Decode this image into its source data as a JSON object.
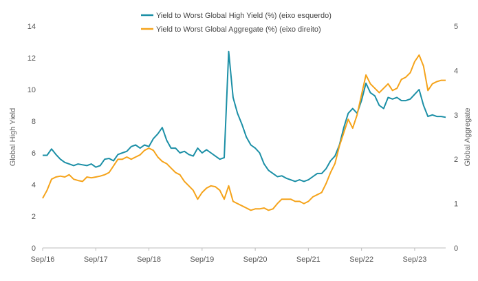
{
  "chart_data": {
    "type": "line",
    "xlabel": "",
    "x_ticks": [
      "Sep/16",
      "Sep/17",
      "Sep/18",
      "Sep/19",
      "Sep/20",
      "Sep/21",
      "Sep/22",
      "Sep/23"
    ],
    "xlim": [
      "2016-09",
      "2024-04"
    ],
    "left_axis": {
      "label": "Global High Yield",
      "lim": [
        0,
        14
      ],
      "ticks": [
        "0",
        "2",
        "4",
        "6",
        "8",
        "10",
        "12",
        "14"
      ]
    },
    "right_axis": {
      "label": "Global Aggregate",
      "lim": [
        0,
        5
      ],
      "ticks": [
        "0",
        "1",
        "2",
        "3",
        "4",
        "5"
      ]
    },
    "grid": false,
    "legend_position": "top-center",
    "series": [
      {
        "name": "Yield to Worst Global High Yield (%) (eixo esquerdo)",
        "axis": "left",
        "color": "#1b8fa6",
        "points": [
          [
            "2016-09",
            5.85
          ],
          [
            "2016-10",
            5.85
          ],
          [
            "2016-11",
            6.25
          ],
          [
            "2016-12",
            5.9
          ],
          [
            "2017-01",
            5.6
          ],
          [
            "2017-02",
            5.4
          ],
          [
            "2017-03",
            5.3
          ],
          [
            "2017-04",
            5.2
          ],
          [
            "2017-05",
            5.3
          ],
          [
            "2017-06",
            5.25
          ],
          [
            "2017-07",
            5.2
          ],
          [
            "2017-08",
            5.3
          ],
          [
            "2017-09",
            5.1
          ],
          [
            "2017-10",
            5.2
          ],
          [
            "2017-11",
            5.6
          ],
          [
            "2017-12",
            5.65
          ],
          [
            "2018-01",
            5.5
          ],
          [
            "2018-02",
            5.9
          ],
          [
            "2018-03",
            6.0
          ],
          [
            "2018-04",
            6.1
          ],
          [
            "2018-05",
            6.4
          ],
          [
            "2018-06",
            6.5
          ],
          [
            "2018-07",
            6.3
          ],
          [
            "2018-08",
            6.5
          ],
          [
            "2018-09",
            6.4
          ],
          [
            "2018-10",
            6.9
          ],
          [
            "2018-11",
            7.2
          ],
          [
            "2018-12",
            7.6
          ],
          [
            "2019-01",
            6.8
          ],
          [
            "2019-02",
            6.3
          ],
          [
            "2019-03",
            6.3
          ],
          [
            "2019-04",
            6.0
          ],
          [
            "2019-05",
            6.1
          ],
          [
            "2019-06",
            5.9
          ],
          [
            "2019-07",
            5.8
          ],
          [
            "2019-08",
            6.3
          ],
          [
            "2019-09",
            6.0
          ],
          [
            "2019-10",
            6.2
          ],
          [
            "2019-11",
            6.0
          ],
          [
            "2019-12",
            5.8
          ],
          [
            "2020-01",
            5.6
          ],
          [
            "2020-02",
            5.7
          ],
          [
            "2020-03",
            12.4
          ],
          [
            "2020-04",
            9.5
          ],
          [
            "2020-05",
            8.5
          ],
          [
            "2020-06",
            7.8
          ],
          [
            "2020-07",
            7.0
          ],
          [
            "2020-08",
            6.5
          ],
          [
            "2020-09",
            6.3
          ],
          [
            "2020-10",
            6.0
          ],
          [
            "2020-11",
            5.3
          ],
          [
            "2020-12",
            4.9
          ],
          [
            "2021-01",
            4.7
          ],
          [
            "2021-02",
            4.5
          ],
          [
            "2021-03",
            4.55
          ],
          [
            "2021-04",
            4.4
          ],
          [
            "2021-05",
            4.3
          ],
          [
            "2021-06",
            4.2
          ],
          [
            "2021-07",
            4.3
          ],
          [
            "2021-08",
            4.2
          ],
          [
            "2021-09",
            4.3
          ],
          [
            "2021-10",
            4.5
          ],
          [
            "2021-11",
            4.7
          ],
          [
            "2021-12",
            4.7
          ],
          [
            "2022-01",
            5.0
          ],
          [
            "2022-02",
            5.5
          ],
          [
            "2022-03",
            5.8
          ],
          [
            "2022-04",
            6.5
          ],
          [
            "2022-05",
            7.6
          ],
          [
            "2022-06",
            8.5
          ],
          [
            "2022-07",
            8.8
          ],
          [
            "2022-08",
            8.5
          ],
          [
            "2022-09",
            9.3
          ],
          [
            "2022-10",
            10.4
          ],
          [
            "2022-11",
            9.8
          ],
          [
            "2022-12",
            9.6
          ],
          [
            "2023-01",
            9.0
          ],
          [
            "2023-02",
            8.8
          ],
          [
            "2023-03",
            9.5
          ],
          [
            "2023-04",
            9.4
          ],
          [
            "2023-05",
            9.5
          ],
          [
            "2023-06",
            9.3
          ],
          [
            "2023-07",
            9.3
          ],
          [
            "2023-08",
            9.4
          ],
          [
            "2023-09",
            9.7
          ],
          [
            "2023-10",
            10.0
          ],
          [
            "2023-11",
            9.0
          ],
          [
            "2023-12",
            8.3
          ],
          [
            "2024-01",
            8.4
          ],
          [
            "2024-02",
            8.3
          ],
          [
            "2024-03",
            8.3
          ],
          [
            "2024-04",
            8.25
          ]
        ]
      },
      {
        "name": "Yield to Worst Global Aggregate (%) (eixo direito)",
        "axis": "right",
        "color": "#f5a31a",
        "points": [
          [
            "2016-09",
            1.12
          ],
          [
            "2016-10",
            1.3
          ],
          [
            "2016-11",
            1.55
          ],
          [
            "2016-12",
            1.6
          ],
          [
            "2017-01",
            1.62
          ],
          [
            "2017-02",
            1.6
          ],
          [
            "2017-03",
            1.65
          ],
          [
            "2017-04",
            1.55
          ],
          [
            "2017-05",
            1.52
          ],
          [
            "2017-06",
            1.5
          ],
          [
            "2017-07",
            1.6
          ],
          [
            "2017-08",
            1.58
          ],
          [
            "2017-09",
            1.6
          ],
          [
            "2017-10",
            1.62
          ],
          [
            "2017-11",
            1.65
          ],
          [
            "2017-12",
            1.7
          ],
          [
            "2018-01",
            1.85
          ],
          [
            "2018-02",
            2.0
          ],
          [
            "2018-03",
            2.0
          ],
          [
            "2018-04",
            2.05
          ],
          [
            "2018-05",
            2.0
          ],
          [
            "2018-06",
            2.05
          ],
          [
            "2018-07",
            2.1
          ],
          [
            "2018-08",
            2.2
          ],
          [
            "2018-09",
            2.25
          ],
          [
            "2018-10",
            2.2
          ],
          [
            "2018-11",
            2.05
          ],
          [
            "2018-12",
            1.95
          ],
          [
            "2019-01",
            1.9
          ],
          [
            "2019-02",
            1.8
          ],
          [
            "2019-03",
            1.7
          ],
          [
            "2019-04",
            1.65
          ],
          [
            "2019-05",
            1.5
          ],
          [
            "2019-06",
            1.4
          ],
          [
            "2019-07",
            1.3
          ],
          [
            "2019-08",
            1.1
          ],
          [
            "2019-09",
            1.25
          ],
          [
            "2019-10",
            1.35
          ],
          [
            "2019-11",
            1.4
          ],
          [
            "2019-12",
            1.38
          ],
          [
            "2020-01",
            1.3
          ],
          [
            "2020-02",
            1.1
          ],
          [
            "2020-03",
            1.4
          ],
          [
            "2020-04",
            1.05
          ],
          [
            "2020-05",
            1.0
          ],
          [
            "2020-06",
            0.95
          ],
          [
            "2020-07",
            0.9
          ],
          [
            "2020-08",
            0.85
          ],
          [
            "2020-09",
            0.88
          ],
          [
            "2020-10",
            0.88
          ],
          [
            "2020-11",
            0.9
          ],
          [
            "2020-12",
            0.85
          ],
          [
            "2021-01",
            0.88
          ],
          [
            "2021-02",
            1.0
          ],
          [
            "2021-03",
            1.1
          ],
          [
            "2021-04",
            1.1
          ],
          [
            "2021-05",
            1.1
          ],
          [
            "2021-06",
            1.05
          ],
          [
            "2021-07",
            1.05
          ],
          [
            "2021-08",
            1.0
          ],
          [
            "2021-09",
            1.05
          ],
          [
            "2021-10",
            1.15
          ],
          [
            "2021-11",
            1.2
          ],
          [
            "2021-12",
            1.25
          ],
          [
            "2022-01",
            1.45
          ],
          [
            "2022-02",
            1.7
          ],
          [
            "2022-03",
            1.9
          ],
          [
            "2022-04",
            2.3
          ],
          [
            "2022-05",
            2.6
          ],
          [
            "2022-06",
            2.9
          ],
          [
            "2022-07",
            2.7
          ],
          [
            "2022-08",
            3.0
          ],
          [
            "2022-09",
            3.45
          ],
          [
            "2022-10",
            3.9
          ],
          [
            "2022-11",
            3.7
          ],
          [
            "2022-12",
            3.6
          ],
          [
            "2023-01",
            3.5
          ],
          [
            "2023-02",
            3.6
          ],
          [
            "2023-03",
            3.7
          ],
          [
            "2023-04",
            3.55
          ],
          [
            "2023-05",
            3.6
          ],
          [
            "2023-06",
            3.8
          ],
          [
            "2023-07",
            3.85
          ],
          [
            "2023-08",
            3.95
          ],
          [
            "2023-09",
            4.2
          ],
          [
            "2023-10",
            4.35
          ],
          [
            "2023-11",
            4.1
          ],
          [
            "2023-12",
            3.55
          ],
          [
            "2024-01",
            3.7
          ],
          [
            "2024-02",
            3.75
          ],
          [
            "2024-03",
            3.78
          ],
          [
            "2024-04",
            3.78
          ]
        ]
      }
    ]
  }
}
